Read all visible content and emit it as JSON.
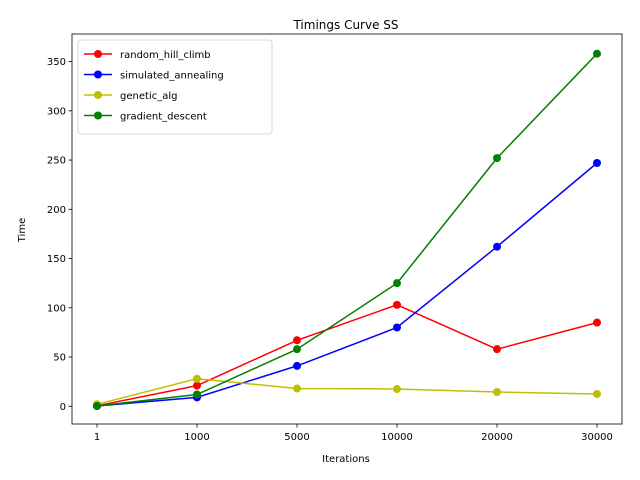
{
  "chart_data": {
    "type": "line",
    "title": "Timings Curve SS",
    "xlabel": "Iterations",
    "ylabel": "Time",
    "categories": [
      "1",
      "1000",
      "5000",
      "10000",
      "20000",
      "30000"
    ],
    "ylim": [
      -18,
      378
    ],
    "yticks": [
      0,
      50,
      100,
      150,
      200,
      250,
      300,
      350
    ],
    "grid": false,
    "legend_position": "top-left",
    "series": [
      {
        "name": "random_hill_climb",
        "color": "#ff0000",
        "values": [
          0.5,
          21,
          67,
          103,
          58,
          85
        ]
      },
      {
        "name": "simulated_annealing",
        "color": "#0000ff",
        "values": [
          0.3,
          9,
          41,
          80,
          162,
          247
        ]
      },
      {
        "name": "genetic_alg",
        "color": "#bfbf00",
        "values": [
          2,
          28,
          18,
          17.5,
          14.5,
          12.5
        ]
      },
      {
        "name": "gradient_descent",
        "color": "#008000",
        "values": [
          0.3,
          12,
          58,
          125,
          252,
          358
        ]
      }
    ]
  }
}
